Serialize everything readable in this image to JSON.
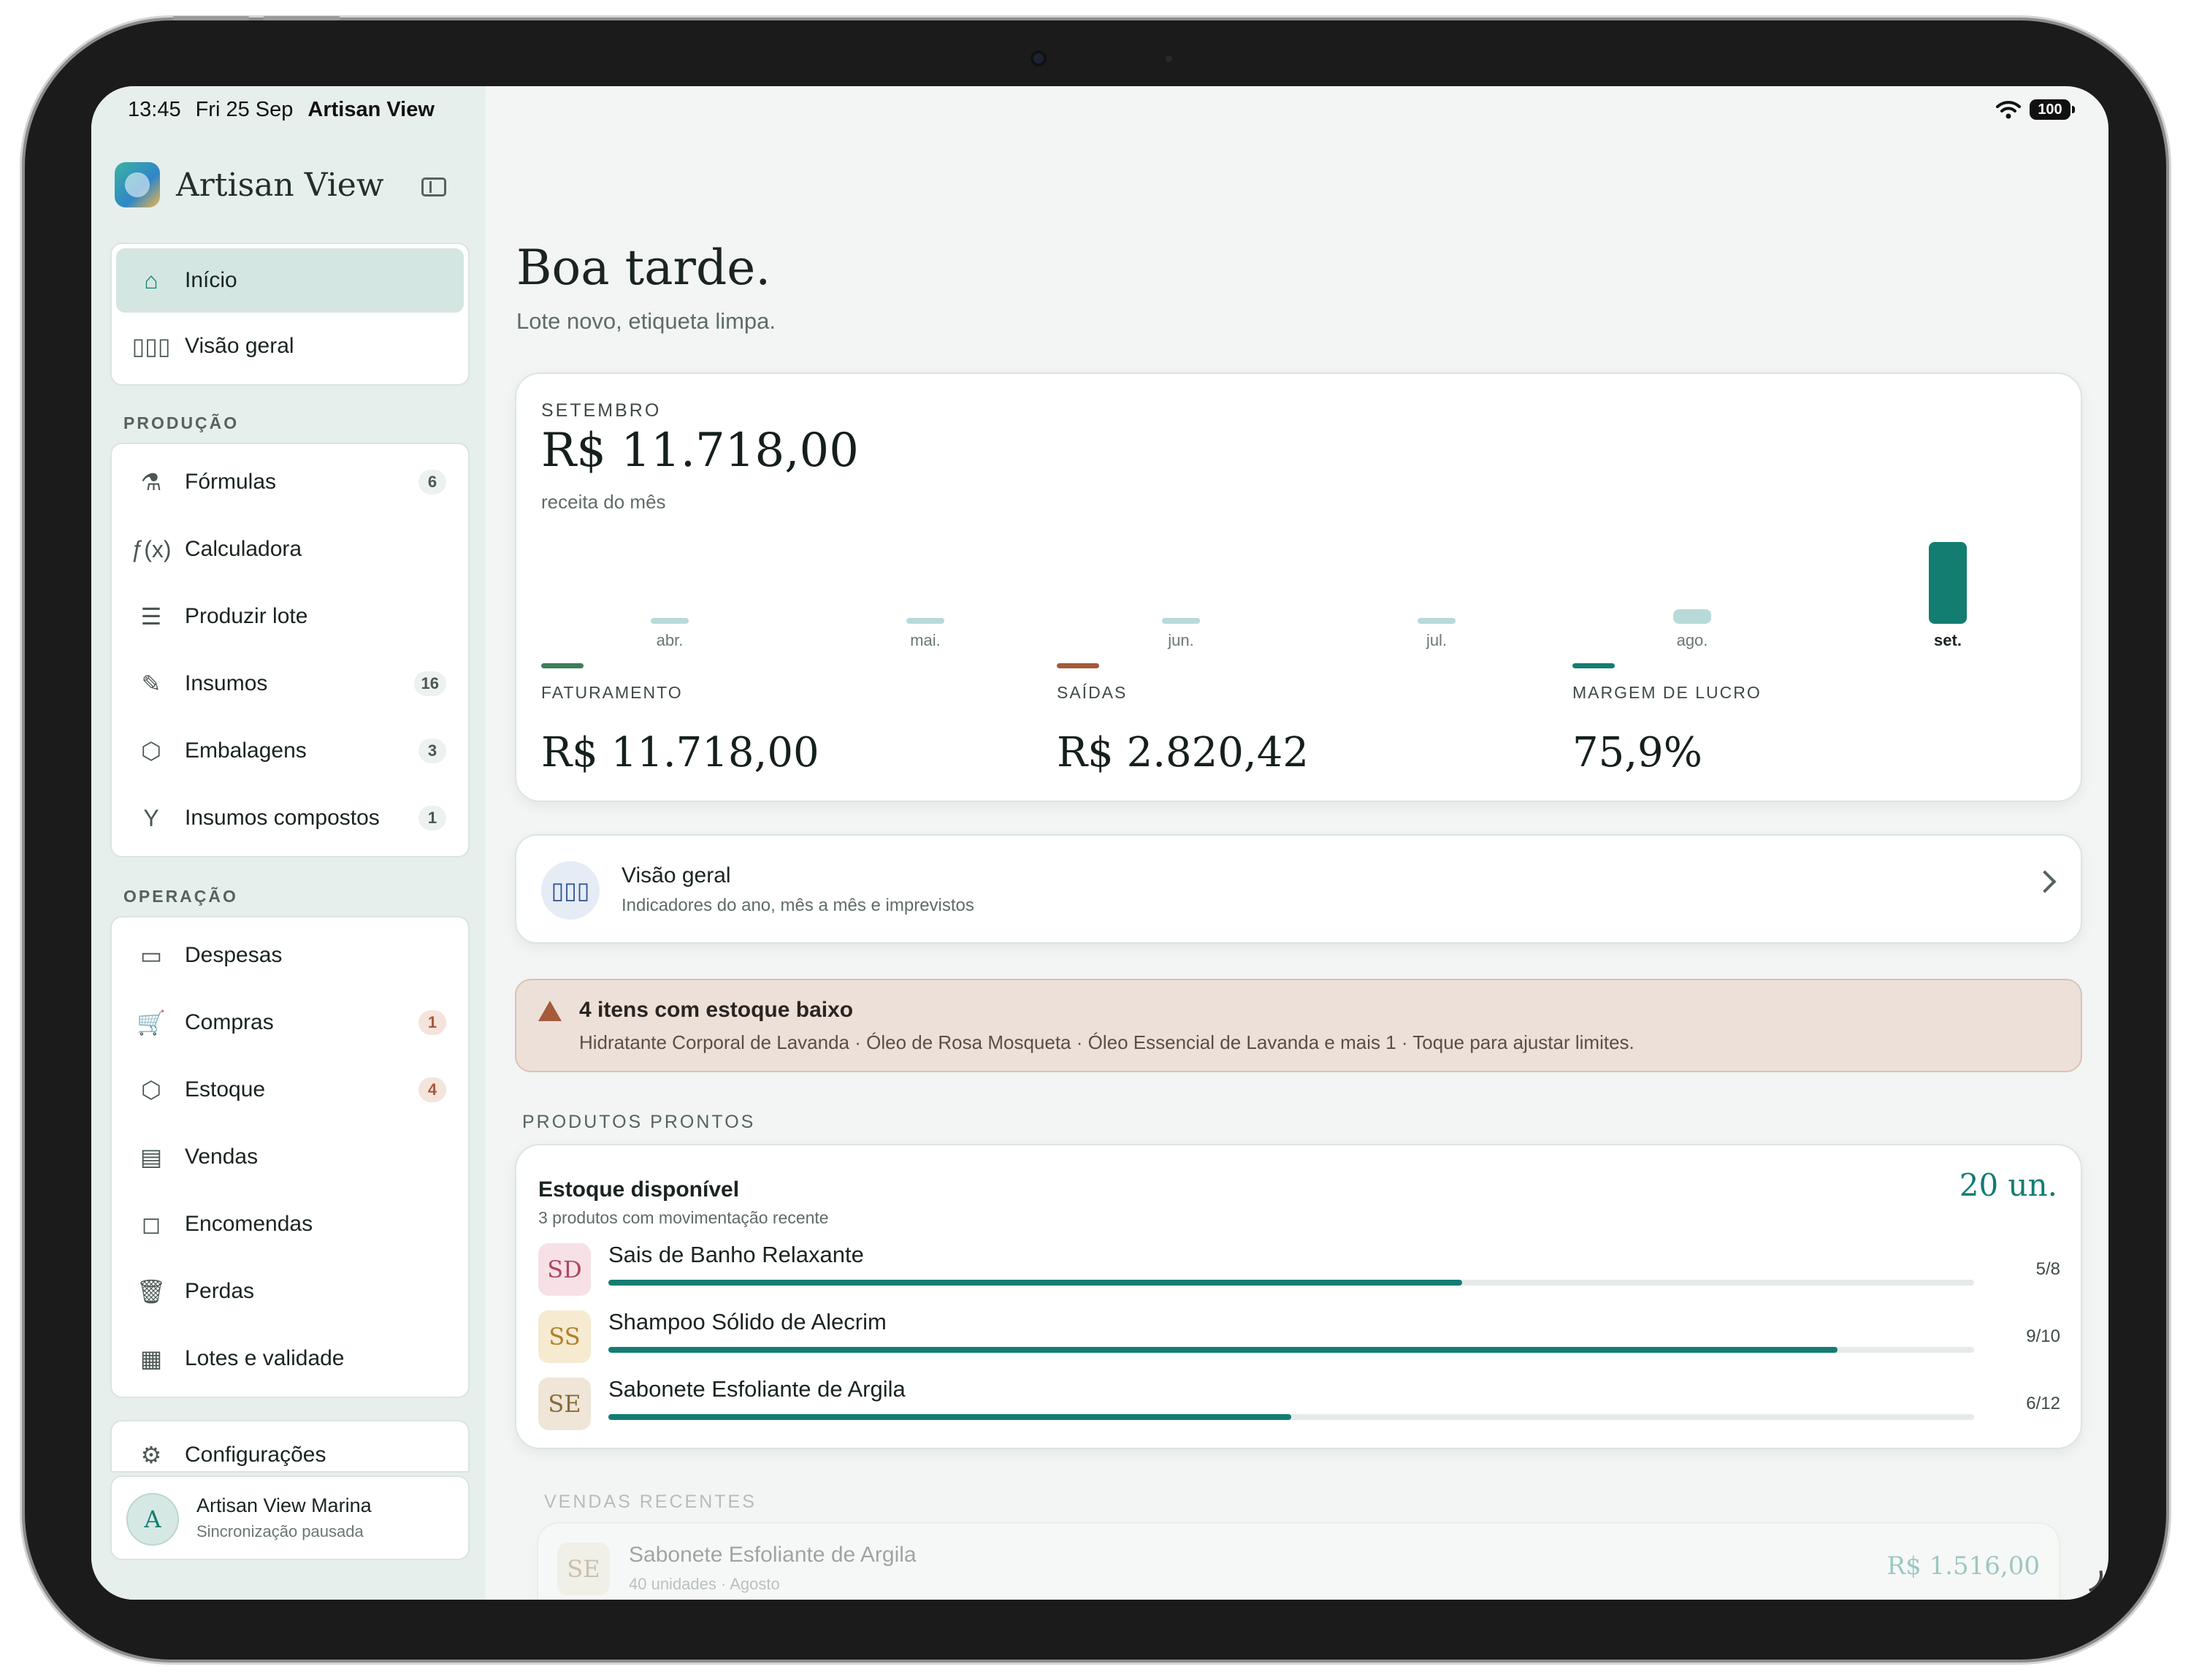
{
  "status": {
    "time": "13:45",
    "date": "Fri 25 Sep",
    "app": "Artisan View",
    "battery": "100"
  },
  "brand": {
    "name": "Artisan View"
  },
  "nav_top": [
    {
      "label": "Início",
      "icon": "home-icon",
      "glyph": "⌂",
      "active": true
    },
    {
      "label": "Visão geral",
      "icon": "bar-chart-icon",
      "glyph": "▯▯▯"
    }
  ],
  "sections": {
    "production": "PRODUÇÃO",
    "operation": "OPERAÇÃO"
  },
  "nav_production": [
    {
      "label": "Fórmulas",
      "icon": "flask-icon",
      "glyph": "⚗",
      "badge": "6"
    },
    {
      "label": "Calculadora",
      "icon": "function-icon",
      "glyph": "ƒ(x)"
    },
    {
      "label": "Produzir lote",
      "icon": "checklist-icon",
      "glyph": "☰"
    },
    {
      "label": "Insumos",
      "icon": "clipboard-icon",
      "glyph": "✎",
      "badge": "16"
    },
    {
      "label": "Embalagens",
      "icon": "package-icon",
      "glyph": "⬡",
      "badge": "3"
    },
    {
      "label": "Insumos compostos",
      "icon": "branch-icon",
      "glyph": "Y",
      "badge": "1"
    }
  ],
  "nav_operation": [
    {
      "label": "Despesas",
      "icon": "card-icon",
      "glyph": "▭"
    },
    {
      "label": "Compras",
      "icon": "cart-icon",
      "glyph": "🛒",
      "badge": "1",
      "alert": true
    },
    {
      "label": "Estoque",
      "icon": "box-icon",
      "glyph": "⬡",
      "badge": "4",
      "alert": true
    },
    {
      "label": "Vendas",
      "icon": "receipt-icon",
      "glyph": "▤"
    },
    {
      "label": "Encomendas",
      "icon": "bag-icon",
      "glyph": "◻"
    },
    {
      "label": "Perdas",
      "icon": "trash-icon",
      "glyph": "🗑"
    },
    {
      "label": "Lotes e validade",
      "icon": "calendar-icon",
      "glyph": "▦"
    }
  ],
  "settings": {
    "label": "Configurações",
    "icon": "gear-icon",
    "glyph": "⚙"
  },
  "user": {
    "initial": "A",
    "name": "Artisan View Marina",
    "status": "Sincronização pausada"
  },
  "greeting": {
    "title": "Boa tarde.",
    "subtitle": "Lote novo, etiqueta limpa."
  },
  "revenue": {
    "month": "SETEMBRO",
    "total": "R$ 11.718,00",
    "caption": "receita do mês",
    "stats": [
      {
        "label": "FATURAMENTO",
        "value": "R$ 11.718,00",
        "color": "#3e7d5a"
      },
      {
        "label": "SAÍDAS",
        "value": "R$ 2.820,42",
        "color": "#a55a3a"
      },
      {
        "label": "MARGEM DE LUCRO",
        "value": "75,9%",
        "color": "#137d72"
      }
    ]
  },
  "chart_data": {
    "type": "bar",
    "categories": [
      "abr.",
      "mai.",
      "jun.",
      "jul.",
      "ago.",
      "set."
    ],
    "values": [
      0,
      0,
      0,
      0,
      2100,
      11718
    ],
    "ylim": [
      0,
      11718
    ],
    "highlight": "set.",
    "colors": {
      "bar": "#b7dad8",
      "current": "#137d72"
    }
  },
  "overview": {
    "title": "Visão geral",
    "subtitle": "Indicadores do ano, mês a mês e imprevistos"
  },
  "alert": {
    "title": "4 itens com estoque baixo",
    "text": "Hidratante Corporal de Lavanda · Óleo de Rosa Mosqueta · Óleo Essencial de Lavanda e mais 1 · Toque para ajustar limites."
  },
  "products": {
    "section": "PRODUTOS PRONTOS",
    "title": "Estoque disponível",
    "subtitle": "3 produtos com movimentação recente",
    "total": "20 un.",
    "items": [
      {
        "initials": "SD",
        "name": "Sais de Banho Relaxante",
        "count": "5/8",
        "fraction": 0.625,
        "bg": "#f7e1e6",
        "fg": "#b0465e"
      },
      {
        "initials": "SS",
        "name": "Shampoo Sólido de Alecrim",
        "count": "9/10",
        "fraction": 0.9,
        "bg": "#f6ead0",
        "fg": "#b0802a"
      },
      {
        "initials": "SE",
        "name": "Sabonete Esfoliante de Argila",
        "count": "6/12",
        "fraction": 0.5,
        "bg": "#efe6d8",
        "fg": "#8a6a3a"
      }
    ]
  },
  "recent_sales": {
    "section": "VENDAS RECENTES",
    "items": [
      {
        "initials": "SE",
        "name": "Sabonete Esfoliante de Argila",
        "detail": "40 unidades · Agosto",
        "value": "R$ 1.516,00"
      }
    ]
  }
}
